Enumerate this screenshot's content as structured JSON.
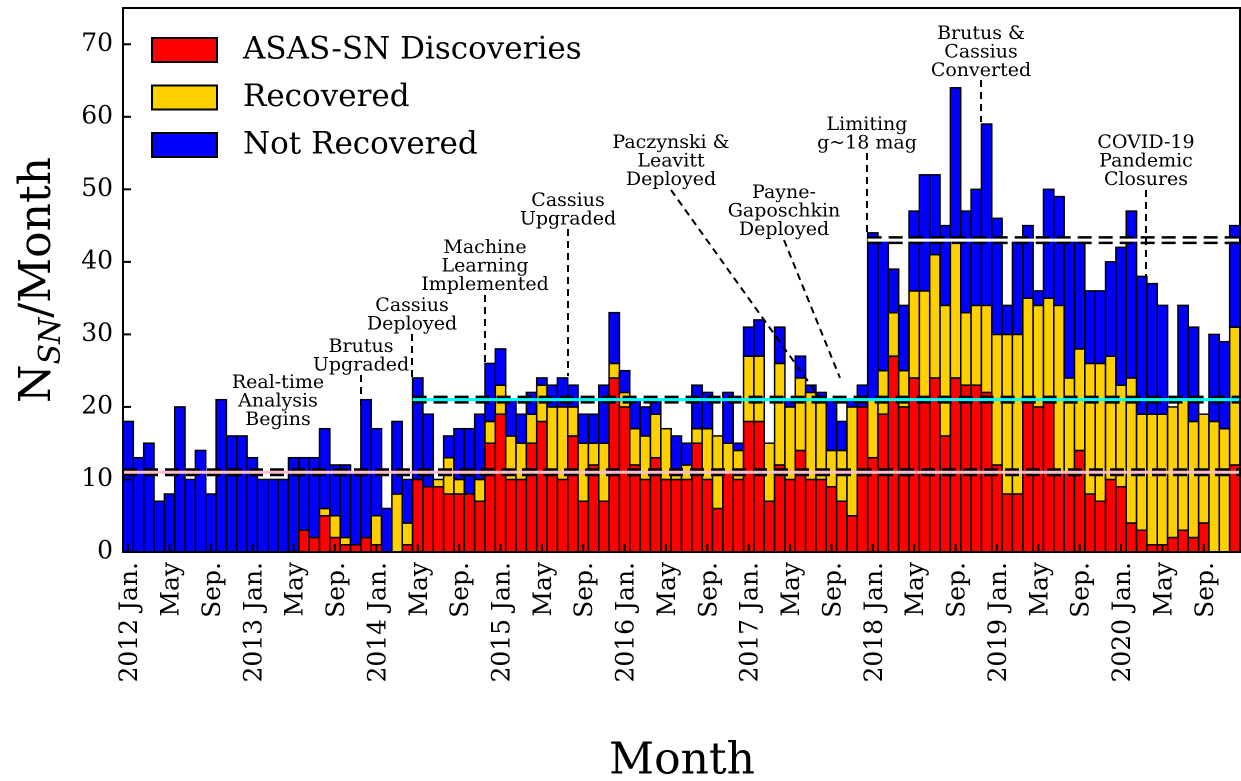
{
  "chart_data": {
    "type": "stacked_bar",
    "xlabel": "Month",
    "ylabel": {
      "base": "N",
      "sub": "SN",
      "rest": "/Month"
    },
    "ylim": [
      0,
      75
    ],
    "yticks": [
      0,
      10,
      20,
      30,
      40,
      50,
      60,
      70
    ],
    "legend": "upper left",
    "categories": [
      "2012 Jan.",
      null,
      null,
      null,
      "May",
      null,
      null,
      null,
      "Sep.",
      null,
      null,
      null,
      "2013 Jan.",
      null,
      null,
      null,
      "May",
      null,
      null,
      null,
      "Sep.",
      null,
      null,
      null,
      "2014 Jan.",
      null,
      null,
      null,
      "May",
      null,
      null,
      null,
      "Sep.",
      null,
      null,
      null,
      "2015 Jan.",
      null,
      null,
      null,
      "May",
      null,
      null,
      null,
      "Sep.",
      null,
      null,
      null,
      "2016 Jan.",
      null,
      null,
      null,
      "May",
      null,
      null,
      null,
      "Sep.",
      null,
      null,
      null,
      "2017 Jan.",
      null,
      null,
      null,
      "May",
      null,
      null,
      null,
      "Sep.",
      null,
      null,
      null,
      "2018 Jan.",
      null,
      null,
      null,
      "May",
      null,
      null,
      null,
      "Sep.",
      null,
      null,
      null,
      "2019 Jan.",
      null,
      null,
      null,
      "May",
      null,
      null,
      null,
      "Sep.",
      null,
      null,
      null,
      "2020 Jan.",
      null,
      null,
      null,
      "May",
      null,
      null,
      null,
      "Sep.",
      null,
      null,
      null
    ],
    "series": [
      {
        "name": "ASAS-SN Discoveries",
        "color": "#ff0000",
        "values": [
          0,
          0,
          0,
          0,
          0,
          0,
          0,
          0,
          0,
          0,
          0,
          0,
          0,
          0,
          0,
          0,
          0,
          3,
          2,
          5,
          2,
          1,
          1,
          2,
          1,
          0,
          0,
          1,
          10,
          9,
          9,
          8,
          8,
          8,
          7,
          15,
          19,
          10,
          10,
          15,
          18,
          11,
          10,
          16,
          7,
          12,
          7,
          24,
          20,
          12,
          10,
          13,
          10,
          10,
          10,
          15,
          10,
          6,
          11,
          10,
          18,
          18,
          7,
          12,
          10,
          14,
          10,
          10,
          9,
          7,
          5,
          20,
          13,
          19,
          27,
          20,
          24,
          21,
          24,
          16,
          24,
          23,
          23,
          22,
          12,
          8,
          8,
          21,
          20,
          21,
          11,
          11,
          14,
          8,
          7,
          10,
          9,
          4,
          3,
          1,
          1,
          2,
          3,
          2,
          4,
          0,
          0,
          12
        ]
      },
      {
        "name": "Recovered",
        "color": "#ffd000",
        "values": [
          0,
          0,
          0,
          0,
          0,
          0,
          0,
          0,
          0,
          0,
          0,
          0,
          0,
          0,
          0,
          0,
          0,
          0,
          0,
          1,
          3,
          1,
          0,
          0,
          4,
          0,
          8,
          3,
          0,
          0,
          1,
          5,
          2,
          0,
          3,
          3,
          4,
          6,
          5,
          4,
          5,
          9,
          10,
          4,
          8,
          3,
          8,
          2,
          2,
          5,
          6,
          6,
          7,
          1,
          2,
          2,
          7,
          10,
          4,
          4,
          9,
          9,
          8,
          14,
          10,
          10,
          12,
          11,
          5,
          7,
          15,
          0,
          8,
          6,
          6,
          5,
          12,
          15,
          17,
          18,
          19,
          10,
          11,
          12,
          18,
          22,
          22,
          14,
          14,
          14,
          23,
          13,
          14,
          18,
          19,
          17,
          14,
          20,
          16,
          18,
          18,
          18,
          18,
          16,
          15,
          18,
          17,
          19
        ]
      },
      {
        "name": "Not Recovered",
        "color": "#0000ff",
        "values": [
          18,
          13,
          15,
          7,
          8,
          20,
          10,
          14,
          8,
          21,
          16,
          16,
          13,
          10,
          10,
          10,
          13,
          10,
          11,
          11,
          7,
          10,
          10,
          19,
          12,
          6,
          10,
          6,
          14,
          10,
          0,
          3,
          7,
          9,
          9,
          8,
          5,
          5,
          4,
          3,
          1,
          3,
          4,
          3,
          4,
          4,
          8,
          7,
          3,
          4,
          4,
          2,
          0,
          5,
          3,
          6,
          5,
          0,
          7,
          1,
          4,
          5,
          0,
          5,
          1,
          3,
          1,
          1,
          7,
          4,
          1,
          3,
          23,
          18,
          6,
          9,
          11,
          16,
          11,
          11,
          21,
          14,
          16,
          25,
          16,
          4,
          13,
          10,
          2,
          15,
          15,
          19,
          15,
          10,
          10,
          13,
          19,
          23,
          19,
          18,
          15,
          0,
          13,
          13,
          0,
          12,
          12,
          14
        ]
      }
    ],
    "reference_lines": [
      {
        "value": 11,
        "start": 0,
        "color": "#ffc0cb"
      },
      {
        "value": 21,
        "start": 28,
        "color": "#00ffff"
      },
      {
        "value": 43,
        "start": 72,
        "color": "#ffffff"
      }
    ],
    "annotations": [
      {
        "text": [
          "Real-time",
          "Analysis",
          "Begins"
        ]
      },
      {
        "text": [
          "Brutus",
          "Upgraded"
        ]
      },
      {
        "text": [
          "Cassius",
          "Deployed"
        ]
      },
      {
        "text": [
          "Machine",
          "Learning",
          "Implemented"
        ]
      },
      {
        "text": [
          "Cassius",
          "Upgraded"
        ]
      },
      {
        "text": [
          "Paczynski &",
          "Leavitt",
          "Deployed"
        ]
      },
      {
        "text": [
          "Payne-",
          "Gaposchkin",
          "Deployed"
        ]
      },
      {
        "text": [
          "Limiting",
          "g~18 mag"
        ]
      },
      {
        "text": [
          "Brutus &",
          "Cassius",
          "Converted"
        ]
      },
      {
        "text": [
          "COVID-19",
          "Pandemic",
          "Closures"
        ]
      }
    ]
  }
}
